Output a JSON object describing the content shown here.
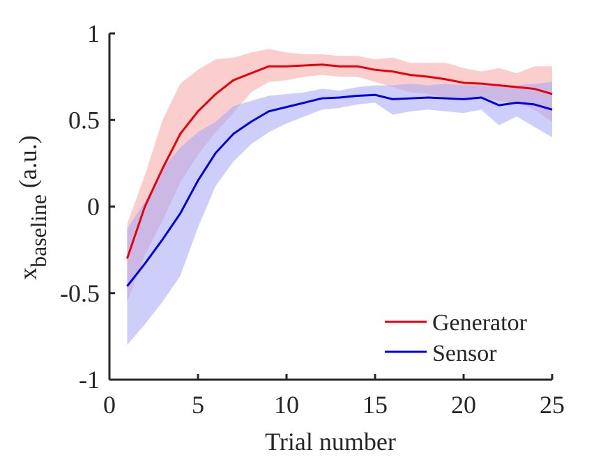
{
  "chart_data": {
    "type": "line",
    "xlabel": "Trial number",
    "ylabel_main": "x",
    "ylabel_sub": "baseline",
    "ylabel_unit": "(a.u.)",
    "xlim": [
      0,
      25
    ],
    "ylim": [
      -1,
      1
    ],
    "xticks": [
      0,
      5,
      10,
      15,
      20,
      25
    ],
    "yticks": [
      -1,
      -0.5,
      0,
      0.5,
      1
    ],
    "grid": false,
    "legend_position": "bottom-right",
    "x": [
      1,
      2,
      3,
      4,
      5,
      6,
      7,
      8,
      9,
      10,
      11,
      12,
      13,
      14,
      15,
      16,
      17,
      18,
      19,
      20,
      21,
      22,
      23,
      24,
      25
    ],
    "series": [
      {
        "name": "Generator",
        "color": "#e8000b",
        "band_color": "#f7a5a5",
        "values": [
          -0.3,
          0.0,
          0.22,
          0.42,
          0.55,
          0.65,
          0.73,
          0.77,
          0.81,
          0.81,
          0.815,
          0.82,
          0.81,
          0.81,
          0.79,
          0.78,
          0.76,
          0.75,
          0.735,
          0.715,
          0.71,
          0.7,
          0.69,
          0.68,
          0.65
        ],
        "upper": [
          -0.1,
          0.18,
          0.5,
          0.71,
          0.79,
          0.85,
          0.86,
          0.89,
          0.91,
          0.89,
          0.88,
          0.88,
          0.87,
          0.87,
          0.85,
          0.86,
          0.83,
          0.83,
          0.83,
          0.8,
          0.78,
          0.8,
          0.77,
          0.81,
          0.81
        ],
        "lower": [
          -0.55,
          -0.28,
          -0.08,
          0.14,
          0.3,
          0.43,
          0.54,
          0.66,
          0.72,
          0.73,
          0.75,
          0.76,
          0.75,
          0.75,
          0.72,
          0.69,
          0.66,
          0.65,
          0.63,
          0.63,
          0.63,
          0.61,
          0.6,
          0.56,
          0.49
        ]
      },
      {
        "name": "Sensor",
        "color": "#0000e0",
        "band_color": "#a5a5f5",
        "values": [
          -0.46,
          -0.33,
          -0.19,
          -0.04,
          0.15,
          0.31,
          0.42,
          0.49,
          0.55,
          0.575,
          0.6,
          0.625,
          0.63,
          0.64,
          0.645,
          0.62,
          0.625,
          0.63,
          0.625,
          0.62,
          0.63,
          0.585,
          0.6,
          0.59,
          0.56
        ],
        "upper": [
          -0.13,
          0.03,
          0.22,
          0.34,
          0.43,
          0.49,
          0.58,
          0.61,
          0.64,
          0.65,
          0.66,
          0.68,
          0.67,
          0.69,
          0.7,
          0.7,
          0.71,
          0.7,
          0.71,
          0.7,
          0.7,
          0.7,
          0.7,
          0.71,
          0.72
        ],
        "lower": [
          -0.8,
          -0.68,
          -0.55,
          -0.4,
          -0.12,
          0.12,
          0.26,
          0.36,
          0.43,
          0.48,
          0.52,
          0.56,
          0.57,
          0.59,
          0.6,
          0.53,
          0.55,
          0.56,
          0.55,
          0.54,
          0.56,
          0.47,
          0.52,
          0.46,
          0.4
        ]
      }
    ]
  }
}
